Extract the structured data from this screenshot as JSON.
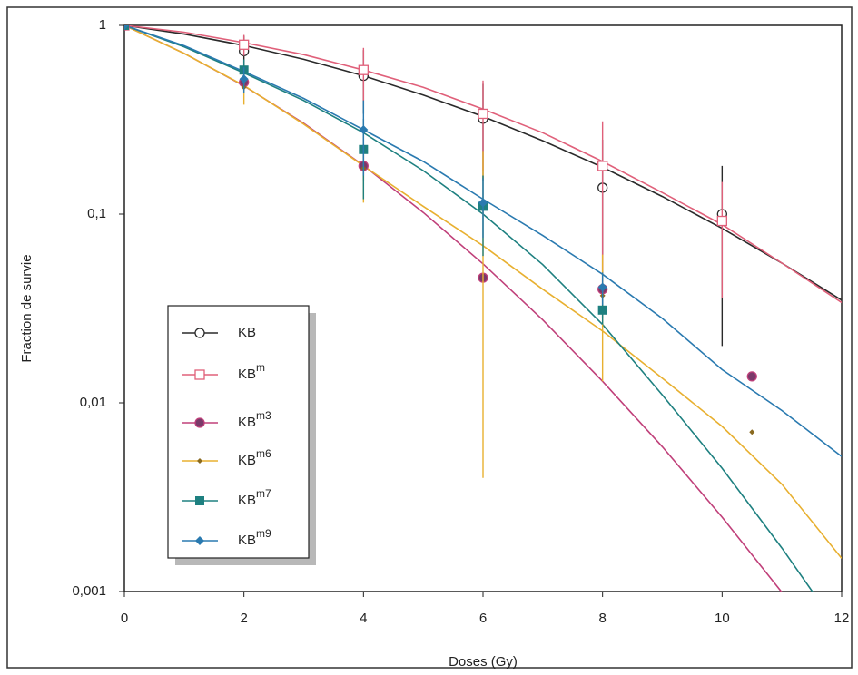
{
  "chart_data": {
    "type": "scatter",
    "x_label": "Doses (Gy)",
    "y_label": "Fraction de survie",
    "xlim": [
      0,
      12
    ],
    "xticks": [
      0,
      2,
      4,
      6,
      8,
      10,
      12
    ],
    "ylim": [
      0.001,
      1
    ],
    "yticks": [
      1,
      {
        "value": 0.1,
        "label": "0,1"
      },
      {
        "value": 0.01,
        "label": "0,01"
      },
      {
        "value": 0.001,
        "label": "0,001"
      }
    ],
    "yscale": "log",
    "fit_x": [
      0,
      1,
      2,
      3,
      4,
      5,
      6,
      7,
      8,
      9,
      10,
      11,
      12
    ],
    "series": [
      {
        "name": "KB",
        "color": "#2a2a2a",
        "marker": "circle-open",
        "x": [
          0,
          2,
          4,
          6,
          8,
          10
        ],
        "values": [
          1,
          0.73,
          0.54,
          0.32,
          0.138,
          0.1
        ],
        "errors": [
          0,
          0.15,
          0.2,
          0.17,
          0.11,
          0.08
        ],
        "fit": [
          1,
          0.899,
          0.783,
          0.661,
          0.541,
          0.428,
          0.329,
          0.245,
          0.177,
          0.124,
          0.084,
          0.055,
          0.035
        ]
      },
      {
        "name": "KB",
        "superscript": "m",
        "color": "#e0607a",
        "marker": "square-open",
        "x": [
          0,
          2,
          4,
          6,
          8,
          10
        ],
        "values": [
          1,
          0.79,
          0.58,
          0.34,
          0.18,
          0.092
        ],
        "errors": [
          0,
          0.1,
          0.18,
          0.17,
          0.13,
          0.056
        ],
        "fit": [
          1,
          0.92,
          0.81,
          0.7,
          0.58,
          0.47,
          0.36,
          0.27,
          0.19,
          0.13,
          0.088,
          0.055,
          0.034
        ]
      },
      {
        "name": "KB",
        "superscript": "m3",
        "color": "#c0407a",
        "marker": "circle-filled",
        "x": [
          0,
          2,
          4,
          6,
          8,
          10.5
        ],
        "values": [
          1,
          0.5,
          0.18,
          0.046,
          0.04,
          0.0138
        ],
        "errors": [
          0,
          0.05,
          0.03,
          0,
          0.005,
          0
        ],
        "fit": [
          1,
          0.711,
          0.478,
          0.303,
          0.181,
          0.102,
          0.0545,
          0.0275,
          0.013,
          0.00585,
          0.00248,
          0.00099,
          0.00037
        ]
      },
      {
        "name": "KB",
        "superscript": "m6",
        "color": "#e8b030",
        "marker": "diamond-small",
        "x": [
          0,
          2,
          4,
          6,
          8,
          10.5
        ],
        "values": [
          1,
          0.47,
          0.175,
          0.11,
          0.037,
          0.007
        ],
        "errors": [
          0,
          0.09,
          0.06,
          0.106,
          0.024,
          0
        ],
        "fit": [
          1,
          0.71,
          0.48,
          0.3,
          0.18,
          0.11,
          0.068,
          0.04,
          0.024,
          0.0135,
          0.0075,
          0.0037,
          0.0015
        ]
      },
      {
        "name": "KB",
        "superscript": "m7",
        "color": "#1e8080",
        "marker": "square-filled",
        "x": [
          0,
          2,
          4,
          6,
          8
        ],
        "values": [
          1,
          0.58,
          0.22,
          0.11,
          0.031
        ],
        "errors": [
          0,
          0.08,
          0.1,
          0.05,
          0.005
        ],
        "fit": [
          1,
          0.77,
          0.56,
          0.4,
          0.27,
          0.17,
          0.1,
          0.054,
          0.026,
          0.011,
          0.0045,
          0.0017,
          0.0006
        ]
      },
      {
        "name": "KB",
        "superscript": "m9",
        "color": "#2a7ab0",
        "marker": "diamond-filled",
        "x": [
          0,
          2,
          4,
          6,
          8
        ],
        "values": [
          1,
          0.52,
          0.28,
          0.115,
          0.041
        ],
        "errors": [
          0,
          0.08,
          0.12,
          0.04,
          0.008
        ],
        "fit": [
          1,
          0.78,
          0.57,
          0.41,
          0.28,
          0.19,
          0.12,
          0.077,
          0.048,
          0.028,
          0.015,
          0.0091,
          0.0052
        ]
      }
    ]
  }
}
